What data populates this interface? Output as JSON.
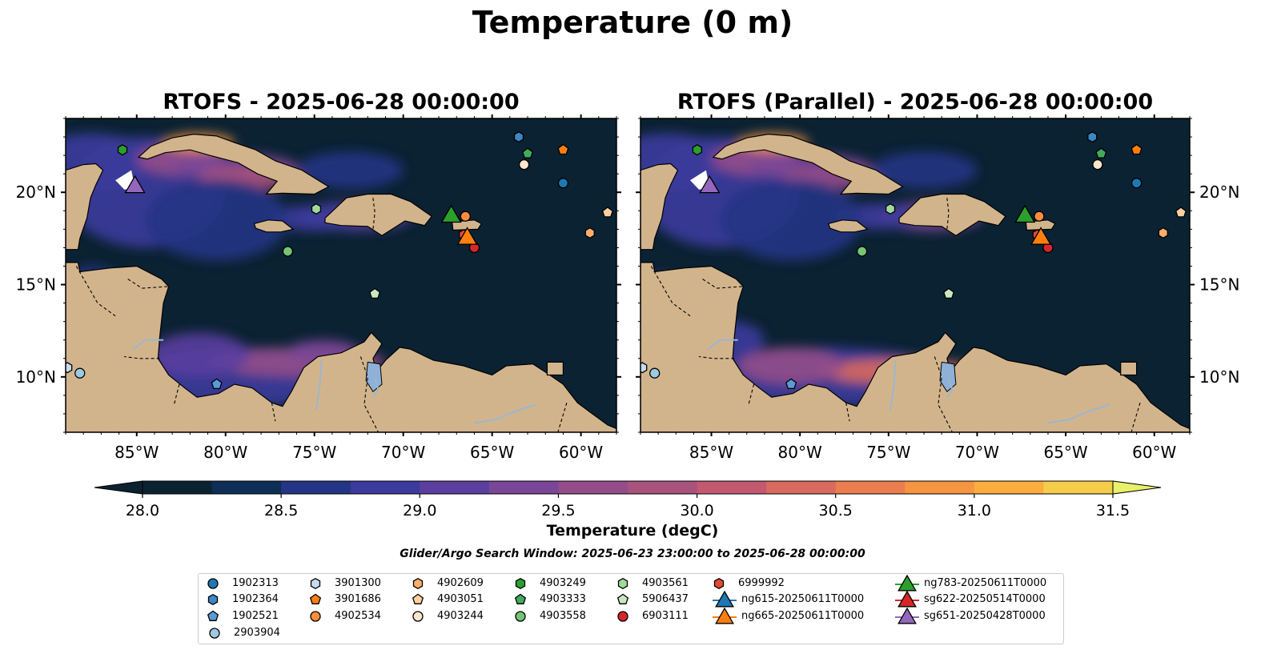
{
  "figure": {
    "suptitle": "Temperature (0 m)",
    "search_window": "Glider/Argo Search Window: 2025-06-23 23:00:00 to 2025-06-28 00:00:00"
  },
  "colors": {
    "land": "#d2b48c",
    "ocean_dark": "#0b2233",
    "rivers": "#9ab7cf"
  },
  "chart_data": [
    {
      "type": "heatmap",
      "title": "RTOFS - 2025-06-28 00:00:00",
      "variable": "Temperature",
      "xlim": [
        -89,
        -58
      ],
      "ylim": [
        7,
        24
      ],
      "xticks": [
        "85°W",
        "80°W",
        "75°W",
        "70°W",
        "65°W",
        "60°W"
      ],
      "xtick_values": [
        -85,
        -80,
        -75,
        -70,
        -65,
        -60
      ],
      "yticks": [
        "10°N",
        "15°N",
        "20°N"
      ],
      "ytick_values": [
        10,
        15,
        20
      ],
      "ytick_side": "left"
    },
    {
      "type": "heatmap",
      "title": "RTOFS (Parallel) - 2025-06-28 00:00:00",
      "variable": "Temperature",
      "xlim": [
        -89,
        -58
      ],
      "ylim": [
        7,
        24
      ],
      "xticks": [
        "85°W",
        "80°W",
        "75°W",
        "70°W",
        "65°W",
        "60°W"
      ],
      "xtick_values": [
        -85,
        -80,
        -75,
        -70,
        -65,
        -60
      ],
      "yticks": [
        "10°N",
        "15°N",
        "20°N"
      ],
      "ytick_values": [
        10,
        15,
        20
      ],
      "ytick_side": "right"
    }
  ],
  "colorbar": {
    "label": "Temperature (degC)",
    "vmin": 28.0,
    "vmax": 31.5,
    "step": 0.25,
    "tick_values": [
      28.0,
      28.5,
      29.0,
      29.5,
      30.0,
      30.5,
      31.0,
      31.5
    ],
    "tick_labels": [
      "28.0",
      "28.5",
      "29.0",
      "29.5",
      "30.0",
      "30.5",
      "31.0",
      "31.5"
    ],
    "colors": [
      "#0b2233",
      "#0e2d57",
      "#243585",
      "#3c3a9c",
      "#5a3f9f",
      "#7a4697",
      "#944d89",
      "#a9527c",
      "#c2596f",
      "#d96a5f",
      "#eb7e4e",
      "#f59441",
      "#fbad3d",
      "#f6cd4a",
      "#e9f069"
    ]
  },
  "platforms": [
    {
      "name": "1902313",
      "marker": "circle",
      "color": "#1f77b4",
      "lon": -61.0,
      "lat": 20.5
    },
    {
      "name": "1902364",
      "marker": "hexagon",
      "color": "#3c87c4",
      "lon": -63.5,
      "lat": 23.0
    },
    {
      "name": "1902521",
      "marker": "pentagon",
      "color": "#5b9bd5",
      "lon": -80.5,
      "lat": 9.6
    },
    {
      "name": "2903904",
      "marker": "circle",
      "color": "#9ecae1",
      "lon": -88.2,
      "lat": 10.2
    },
    {
      "name": "3901300",
      "marker": "hexagon",
      "color": "#c6dbef",
      "lon": -88.9,
      "lat": 10.5
    },
    {
      "name": "3901686",
      "marker": "pentagon",
      "color": "#ff7f0e",
      "lon": -61.0,
      "lat": 22.3
    },
    {
      "name": "4902534",
      "marker": "circle",
      "color": "#fd8d3c",
      "lon": -66.5,
      "lat": 18.7
    },
    {
      "name": "4902609",
      "marker": "hexagon",
      "color": "#fdae6b",
      "lon": -59.5,
      "lat": 17.8
    },
    {
      "name": "4903051",
      "marker": "pentagon",
      "color": "#fdd0a2",
      "lon": -58.5,
      "lat": 18.9
    },
    {
      "name": "4903244",
      "marker": "circle",
      "color": "#fee6ce",
      "lon": -63.2,
      "lat": 21.5
    },
    {
      "name": "4903249",
      "marker": "hexagon",
      "color": "#2ca02c",
      "lon": -85.8,
      "lat": 22.3
    },
    {
      "name": "4903333",
      "marker": "pentagon",
      "color": "#41ab5d",
      "lon": -63.0,
      "lat": 22.1
    },
    {
      "name": "4903558",
      "marker": "circle",
      "color": "#74c476",
      "lon": -76.5,
      "lat": 16.8
    },
    {
      "name": "4903561",
      "marker": "hexagon",
      "color": "#a1d99b",
      "lon": -74.9,
      "lat": 19.1
    },
    {
      "name": "5906437",
      "marker": "pentagon",
      "color": "#c7e9c0",
      "lon": -71.6,
      "lat": 14.5
    },
    {
      "name": "6903111",
      "marker": "circle",
      "color": "#d62728",
      "lon": -66.0,
      "lat": 17.0
    },
    {
      "name": "6999992",
      "marker": "hexagon",
      "color": "#e34a33",
      "lon": -66.6,
      "lat": 17.7
    }
  ],
  "gliders": [
    {
      "name": "ng615-20250611T0000",
      "color": "#1f77b4",
      "lon": -66.4,
      "lat": 17.6
    },
    {
      "name": "ng665-20250611T0000",
      "color": "#ff7f0e",
      "lon": -66.4,
      "lat": 17.6
    },
    {
      "name": "ng783-20250611T0000",
      "color": "#2ca02c",
      "lon": -67.3,
      "lat": 18.8
    },
    {
      "name": "sg622-20250514T0000",
      "color": "#d62728",
      "lon": -67.3,
      "lat": 18.8
    },
    {
      "name": "sg651-20250428T0000",
      "color": "#9467bd",
      "lon": -85.1,
      "lat": 20.4
    }
  ],
  "legend": {
    "columns": [
      [
        "1902313",
        "1902364",
        "1902521",
        "2903904"
      ],
      [
        "3901300",
        "3901686",
        "4902534"
      ],
      [
        "4902609",
        "4903051",
        "4903244"
      ],
      [
        "4903249",
        "4903333",
        "4903558"
      ],
      [
        "4903561",
        "5906437",
        "6903111"
      ],
      [
        "6999992",
        "ng615-20250611T0000",
        "ng665-20250611T0000"
      ],
      [
        "ng783-20250611T0000",
        "sg622-20250514T0000",
        "sg651-20250428T0000"
      ]
    ]
  }
}
